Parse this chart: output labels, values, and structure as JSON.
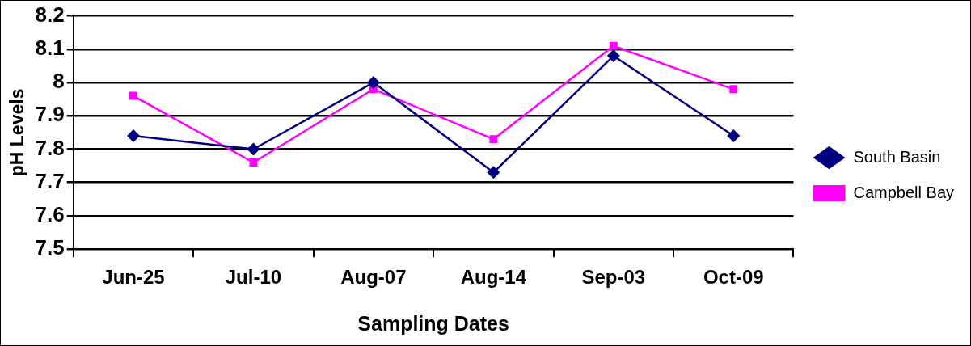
{
  "chart_data": {
    "type": "line",
    "xlabel": "Sampling Dates",
    "ylabel": "pH Levels",
    "categories": [
      "Jun-25",
      "Jul-10",
      "Aug-07",
      "Aug-14",
      "Sep-03",
      "Oct-09"
    ],
    "series": [
      {
        "name": "South Basin",
        "color": "#000080",
        "marker": "diamond",
        "values": [
          7.84,
          7.8,
          8.0,
          7.73,
          8.08,
          7.84
        ]
      },
      {
        "name": "Campbell Bay",
        "color": "#ff00ff",
        "marker": "square",
        "values": [
          7.96,
          7.76,
          7.98,
          7.83,
          8.11,
          7.98
        ]
      }
    ],
    "ylim": [
      7.5,
      8.2
    ],
    "yticks": [
      7.5,
      7.6,
      7.7,
      7.8,
      7.9,
      8,
      8.1,
      8.2
    ],
    "grid": "y",
    "legend": "right",
    "line_style": "solid"
  }
}
